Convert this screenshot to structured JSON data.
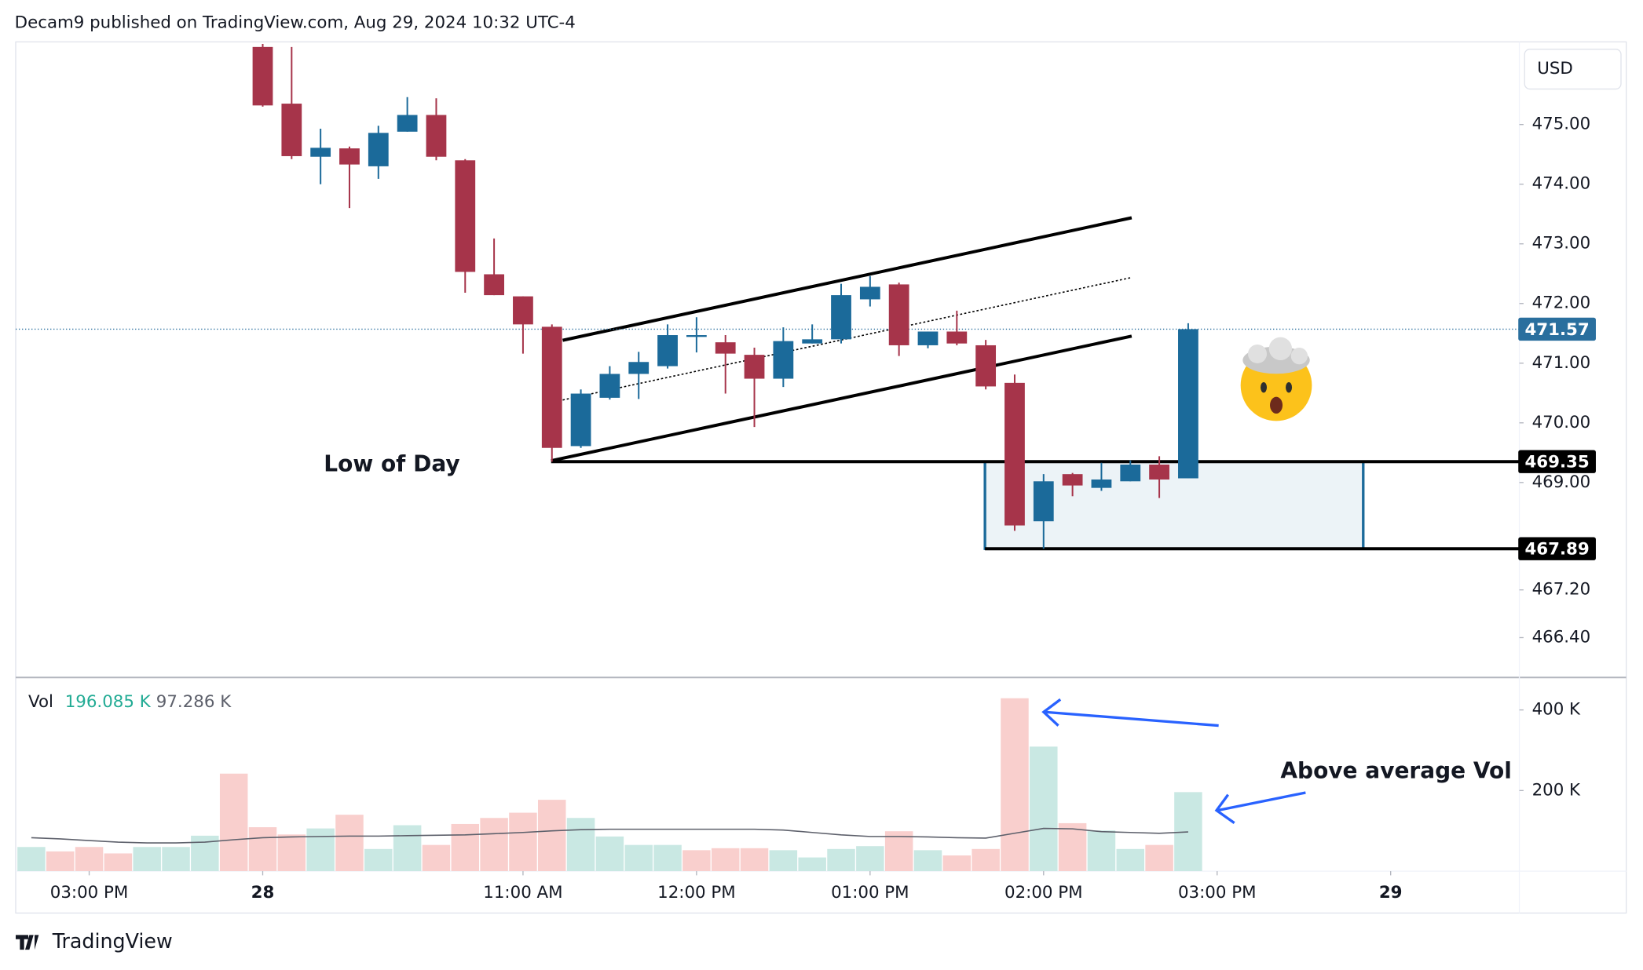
{
  "header": {
    "text": "Decam9 published on TradingView.com, Aug 29, 2024 10:32 UTC-4"
  },
  "chart_data": {
    "type": "candlestick",
    "currency": "USD",
    "annotations": {
      "low_of_day": "Low of Day",
      "above_average_vol": "Above average Vol"
    },
    "xlim": [
      -0.54,
      51.45
    ],
    "xticks": [
      {
        "value": 2,
        "label": "03:00 PM"
      },
      {
        "value": 8,
        "label": "28"
      },
      {
        "value": 17,
        "label": "11:00 AM"
      },
      {
        "value": 23,
        "label": "12:00 PM"
      },
      {
        "value": 29,
        "label": "01:00 PM"
      },
      {
        "value": 35,
        "label": "02:00 PM"
      },
      {
        "value": 41,
        "label": "03:00 PM"
      },
      {
        "value": 47,
        "label": "29"
      }
    ],
    "ylim": [
      465.75,
      476.35
    ],
    "yticks": [
      {
        "value": 475,
        "label": "475.00"
      },
      {
        "value": 474,
        "label": "474.00"
      },
      {
        "value": 473,
        "label": "473.00"
      },
      {
        "value": 472,
        "label": "472.00"
      },
      {
        "value": 471,
        "label": "471.00"
      },
      {
        "value": 470,
        "label": "470.00"
      },
      {
        "value": 469,
        "label": "469.00"
      },
      {
        "value": 467.2,
        "label": "467.20"
      },
      {
        "value": 466.4,
        "label": "466.40"
      }
    ],
    "open": [
      null,
      null,
      null,
      null,
      null,
      null,
      null,
      null,
      476.3,
      475.35,
      474.46,
      474.6,
      474.3,
      474.88,
      475.16,
      474.4,
      472.49,
      472.12,
      471.61,
      469.61,
      470.42,
      470.82,
      470.95,
      471.44,
      471.35,
      471.14,
      470.74,
      471.33,
      471.4,
      472.07,
      472.32,
      471.3,
      471.53,
      471.3,
      470.67,
      468.35,
      469.14,
      468.91,
      469.02,
      469.3,
      469.07
    ],
    "high": [
      null,
      null,
      null,
      null,
      null,
      null,
      null,
      null,
      476.5,
      476.3,
      474.93,
      474.63,
      474.98,
      475.46,
      475.44,
      474.42,
      473.09,
      472.12,
      471.65,
      470.56,
      470.95,
      471.19,
      471.65,
      471.77,
      471.47,
      471.26,
      471.6,
      471.65,
      472.33,
      472.46,
      472.35,
      471.53,
      471.88,
      471.39,
      470.81,
      469.14,
      469.16,
      469.33,
      469.37,
      469.44,
      471.67
    ],
    "low": [
      null,
      null,
      null,
      null,
      null,
      null,
      null,
      null,
      475.3,
      474.42,
      474.0,
      473.6,
      474.09,
      474.88,
      474.4,
      472.18,
      472.14,
      471.16,
      469.35,
      469.58,
      470.39,
      470.4,
      470.91,
      471.18,
      470.49,
      469.93,
      470.6,
      471.33,
      471.33,
      471.95,
      471.12,
      471.25,
      471.3,
      470.56,
      468.19,
      467.89,
      468.77,
      468.86,
      469.02,
      468.74,
      469.07
    ],
    "close": [
      null,
      null,
      null,
      null,
      null,
      null,
      null,
      null,
      475.32,
      474.47,
      474.61,
      474.33,
      474.86,
      475.16,
      474.46,
      472.53,
      472.14,
      471.65,
      469.58,
      470.49,
      470.82,
      471.02,
      471.47,
      471.47,
      471.16,
      470.74,
      471.37,
      471.4,
      472.14,
      472.28,
      471.3,
      471.53,
      471.33,
      470.61,
      468.28,
      469.02,
      468.95,
      469.05,
      469.3,
      469.05,
      471.57
    ],
    "up_color": "#1b6a9a",
    "down_color": "#a6344a",
    "last_price": 471.57,
    "last_price_color": "#2a6f9e",
    "levels": [
      469.35,
      467.89
    ],
    "volume": {
      "label": "Vol",
      "values": [
        60000,
        49000,
        60000,
        44000,
        60000,
        60000,
        88000,
        242000,
        109000,
        91000,
        106000,
        140000,
        55000,
        114000,
        65000,
        117000,
        132000,
        145000,
        177000,
        132000,
        86000,
        65000,
        65000,
        52000,
        57000,
        57000,
        52000,
        34000,
        55000,
        62000,
        99000,
        52000,
        39000,
        55000,
        429000,
        309000,
        119000,
        101000,
        55000,
        65000,
        196085
      ],
      "colors": [
        "#c9e8e3",
        "#f9cfcd",
        "#f9cfcd",
        "#f9cfcd",
        "#c9e8e3",
        "#c9e8e3",
        "#c9e8e3",
        "#f9cfcd",
        "#f9cfcd",
        "#f9cfcd",
        "#c9e8e3",
        "#f9cfcd",
        "#c9e8e3",
        "#c9e8e3",
        "#f9cfcd",
        "#f9cfcd",
        "#f9cfcd",
        "#f9cfcd",
        "#f9cfcd",
        "#c9e8e3",
        "#c9e8e3",
        "#c9e8e3",
        "#c9e8e3",
        "#f9cfcd",
        "#f9cfcd",
        "#f9cfcd",
        "#c9e8e3",
        "#c9e8e3",
        "#c9e8e3",
        "#c9e8e3",
        "#f9cfcd",
        "#c9e8e3",
        "#f9cfcd",
        "#f9cfcd",
        "#f9cfcd",
        "#c9e8e3",
        "#f9cfcd",
        "#c9e8e3",
        "#c9e8e3",
        "#f9cfcd",
        "#c9e8e3"
      ],
      "legend_value": {
        "value": 196085,
        "label": "196.085 K"
      },
      "legend_color": "#22ab94",
      "ylim": [
        0,
        478000
      ],
      "yticks": [
        {
          "value": 400000,
          "label": "400 K"
        },
        {
          "value": 200000,
          "label": "200 K"
        }
      ],
      "ma": {
        "color": "#5d606b",
        "values": [
          83000,
          80000,
          76000,
          72000,
          70000,
          70000,
          72000,
          78000,
          83000,
          85000,
          86000,
          87000,
          87000,
          88000,
          89000,
          90000,
          93000,
          96000,
          100000,
          103000,
          104000,
          104000,
          104000,
          104000,
          104000,
          104000,
          102000,
          96000,
          90000,
          86000,
          86000,
          85000,
          83000,
          82000,
          94000,
          106000,
          105000,
          98000,
          96000,
          94000,
          97286
        ],
        "legend_value": {
          "value": 97286,
          "label": "97.286 K"
        }
      }
    }
  },
  "footer": {
    "brand": "TradingView"
  }
}
